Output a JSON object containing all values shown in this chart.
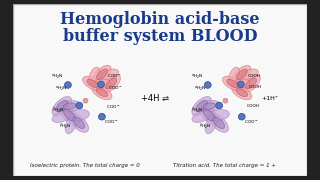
{
  "title_line1": "Hemoglobin acid-base",
  "title_line2": "buffer system BLOOD",
  "title_color": "#1a3a8a",
  "title_fontsize": 11.5,
  "slide_bg": "#f8f8f8",
  "outer_bg": "#222222",
  "arrow_text": "+4H ⇌",
  "arrow_text2": "+1H⁺",
  "caption_left": "Isoelectric protein. The total charge = 0",
  "caption_right": "Titration acid. The total charge = 1 +",
  "caption_fontsize": 4.0,
  "pink_color": "#e07880",
  "pink_light": "#eeaab0",
  "purple_color": "#a888c0",
  "purple_light": "#c8aad8",
  "blue_dot": "#5577bb",
  "pink_dot": "#dda0a8"
}
